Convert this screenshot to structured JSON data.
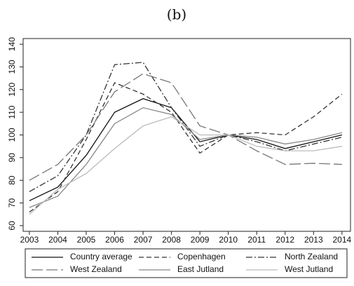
{
  "chart_data": {
    "type": "line",
    "title": "(b)",
    "x": [
      2003,
      2004,
      2005,
      2006,
      2007,
      2008,
      2009,
      2010,
      2011,
      2012,
      2013,
      2014
    ],
    "xlim": [
      2002.78,
      2014.3
    ],
    "xticks": [
      2003,
      2004,
      2005,
      2006,
      2007,
      2008,
      2009,
      2010,
      2011,
      2012,
      2013,
      2014
    ],
    "ylim": [
      57.5,
      142.5
    ],
    "yticks": [
      60,
      70,
      80,
      90,
      100,
      110,
      120,
      130,
      140
    ],
    "series": [
      {
        "name": "Country average",
        "color": "#111111",
        "dash": "solid",
        "values": [
          71,
          77,
          91,
          110,
          116,
          112,
          97,
          100,
          98,
          94,
          97,
          100
        ]
      },
      {
        "name": "Copenhagen",
        "color": "#333333",
        "dash": "dashed",
        "values": [
          66,
          75,
          98,
          123,
          118,
          110,
          92,
          100,
          101,
          100,
          108,
          118
        ]
      },
      {
        "name": "North Zealand",
        "color": "#333333",
        "dash": "dashdot",
        "values": [
          75,
          82,
          100,
          131,
          132,
          112,
          95,
          100,
          97,
          93,
          96,
          99
        ]
      },
      {
        "name": "West Zealand",
        "color": "#777777",
        "dash": "longdash",
        "values": [
          80,
          87,
          100,
          119,
          127,
          123,
          104,
          100,
          93,
          87,
          87.5,
          87
        ]
      },
      {
        "name": "East Jutland",
        "color": "#888888",
        "dash": "solid",
        "values": [
          68,
          73,
          87,
          105,
          112,
          109,
          98,
          100,
          99,
          96,
          98,
          101
        ]
      },
      {
        "name": "West Jutland",
        "color": "#bbbbbb",
        "dash": "solid",
        "values": [
          65,
          76,
          83,
          94,
          104,
          108,
          100,
          100,
          95,
          93,
          93,
          95
        ]
      }
    ]
  }
}
